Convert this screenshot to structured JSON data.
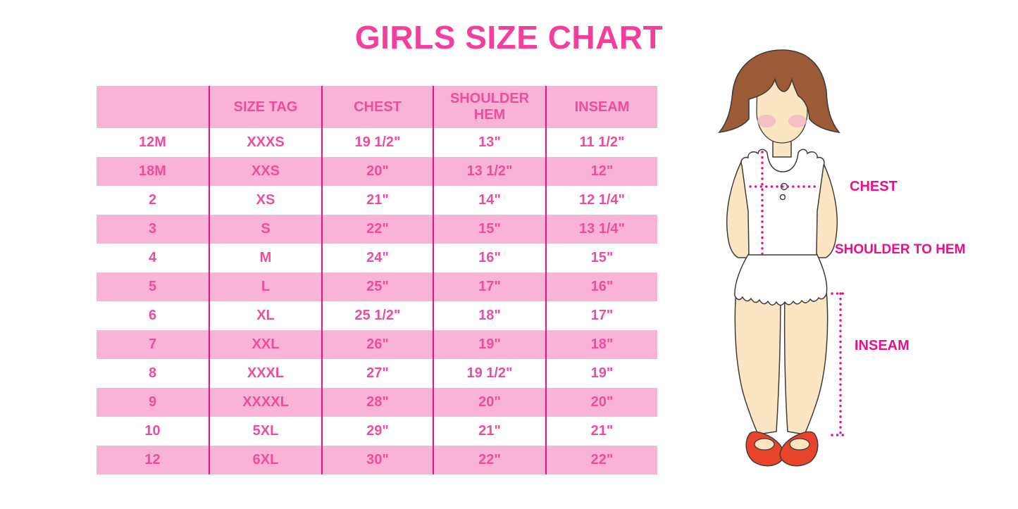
{
  "title": "GIRLS SIZE CHART",
  "chart_data": {
    "type": "table",
    "title": "GIRLS SIZE CHART",
    "columns": [
      "",
      "SIZE TAG",
      "CHEST",
      "SHOULDER HEM",
      "INSEAM"
    ],
    "rows": [
      [
        "12M",
        "XXXS",
        "19 1/2\"",
        "13\"",
        "11 1/2\""
      ],
      [
        "18M",
        "XXS",
        "20\"",
        "13 1/2\"",
        "12\""
      ],
      [
        "2",
        "XS",
        "21\"",
        "14\"",
        "12 1/4\""
      ],
      [
        "3",
        "S",
        "22\"",
        "15\"",
        "13 1/4\""
      ],
      [
        "4",
        "M",
        "24\"",
        "16\"",
        "15\""
      ],
      [
        "5",
        "L",
        "25\"",
        "17\"",
        "16\""
      ],
      [
        "6",
        "XL",
        "25 1/2\"",
        "18\"",
        "17\""
      ],
      [
        "7",
        "XXL",
        "26\"",
        "19\"",
        "18\""
      ],
      [
        "8",
        "XXXL",
        "27\"",
        "19 1/2\"",
        "19\""
      ],
      [
        "9",
        "XXXXL",
        "28\"",
        "20\"",
        "20\""
      ],
      [
        "10",
        "5XL",
        "29\"",
        "21\"",
        "21\""
      ],
      [
        "12",
        "6XL",
        "30\"",
        "22\"",
        "22\""
      ]
    ]
  },
  "figure": {
    "labels": {
      "chest": "CHEST",
      "shoulder_to_hem": "SHOULDER TO HEM",
      "inseam": "INSEAM"
    }
  },
  "colors": {
    "title_pink": "#F33E9C",
    "row_pink": "#F9B3D6",
    "cell_text": "#EE4D9F",
    "grid_line": "#E31586",
    "label_pink": "#F00C8C",
    "hair_brown": "#9C5B36",
    "skin": "#FBE5C2",
    "blush": "#F3B6C4",
    "shoe_red": "#E8432B",
    "outline": "#413C38",
    "garment_white": "#FFFFFF"
  }
}
